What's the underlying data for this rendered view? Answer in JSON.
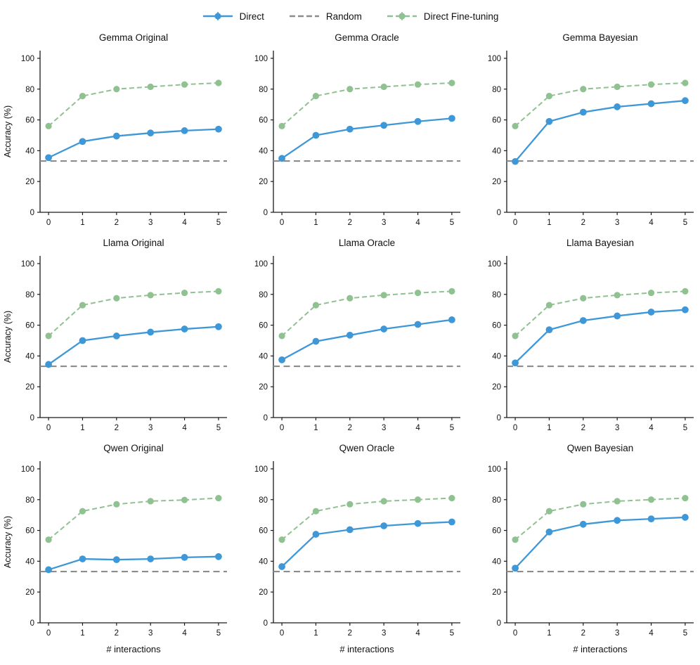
{
  "colors": {
    "direct": "#3e97d7",
    "fine_tuning": "#8fc191",
    "random": "#8c8c8c",
    "spine": "#1a1a1a",
    "text": "#111111"
  },
  "legend": {
    "items": [
      {
        "name": "direct",
        "label": "Direct",
        "style": "solid",
        "marker": true,
        "color_key": "direct"
      },
      {
        "name": "random",
        "label": "Random",
        "style": "dashed",
        "marker": false,
        "color_key": "random"
      },
      {
        "name": "fine-tuning",
        "label": "Direct Fine-tuning",
        "style": "dashed",
        "marker": true,
        "color_key": "fine_tuning"
      }
    ]
  },
  "axes_defaults": {
    "xlim": [
      -0.25,
      5.25
    ],
    "ylim": [
      0,
      105
    ],
    "xticks": [
      0,
      1,
      2,
      3,
      4,
      5
    ],
    "yticks": [
      0,
      20,
      40,
      60,
      80,
      100
    ]
  },
  "chart_data": [
    {
      "type": "line",
      "title": "Gemma Original",
      "ylabel": "Accuracy (%)",
      "xlabel": "",
      "x": [
        0,
        1,
        2,
        3,
        4,
        5
      ],
      "random_baseline": 33.3,
      "series": [
        {
          "name": "Direct Fine-tuning",
          "values": [
            56,
            75.5,
            80,
            81.5,
            83,
            84
          ]
        },
        {
          "name": "Direct",
          "values": [
            35.5,
            46,
            49.5,
            51.5,
            53,
            54
          ]
        }
      ]
    },
    {
      "type": "line",
      "title": "Gemma Oracle",
      "ylabel": "",
      "xlabel": "",
      "x": [
        0,
        1,
        2,
        3,
        4,
        5
      ],
      "random_baseline": 33.3,
      "series": [
        {
          "name": "Direct Fine-tuning",
          "values": [
            56,
            75.5,
            80,
            81.5,
            83,
            84
          ]
        },
        {
          "name": "Direct",
          "values": [
            35,
            50,
            54,
            56.5,
            59,
            61
          ]
        }
      ]
    },
    {
      "type": "line",
      "title": "Gemma Bayesian",
      "ylabel": "",
      "xlabel": "",
      "x": [
        0,
        1,
        2,
        3,
        4,
        5
      ],
      "random_baseline": 33.3,
      "series": [
        {
          "name": "Direct Fine-tuning",
          "values": [
            56,
            75.5,
            80,
            81.5,
            83,
            84
          ]
        },
        {
          "name": "Direct",
          "values": [
            33,
            59,
            65,
            68.5,
            70.5,
            72.5
          ]
        }
      ]
    },
    {
      "type": "line",
      "title": "Llama Original",
      "ylabel": "Accuracy (%)",
      "xlabel": "",
      "x": [
        0,
        1,
        2,
        3,
        4,
        5
      ],
      "random_baseline": 33.3,
      "series": [
        {
          "name": "Direct Fine-tuning",
          "values": [
            53,
            73,
            77.5,
            79.5,
            81,
            82
          ]
        },
        {
          "name": "Direct",
          "values": [
            34.5,
            50,
            53,
            55.5,
            57.5,
            59
          ]
        }
      ]
    },
    {
      "type": "line",
      "title": "Llama Oracle",
      "ylabel": "",
      "xlabel": "",
      "x": [
        0,
        1,
        2,
        3,
        4,
        5
      ],
      "random_baseline": 33.3,
      "series": [
        {
          "name": "Direct Fine-tuning",
          "values": [
            53,
            73,
            77.5,
            79.5,
            81,
            82
          ]
        },
        {
          "name": "Direct",
          "values": [
            37.5,
            49.5,
            53.5,
            57.5,
            60.5,
            63.5
          ]
        }
      ]
    },
    {
      "type": "line",
      "title": "Llama Bayesian",
      "ylabel": "",
      "xlabel": "",
      "x": [
        0,
        1,
        2,
        3,
        4,
        5
      ],
      "random_baseline": 33.3,
      "series": [
        {
          "name": "Direct Fine-tuning",
          "values": [
            53,
            73,
            77.5,
            79.5,
            81,
            82
          ]
        },
        {
          "name": "Direct",
          "values": [
            35.5,
            57,
            63,
            66,
            68.5,
            70
          ]
        }
      ]
    },
    {
      "type": "line",
      "title": "Qwen Original",
      "ylabel": "Accuracy (%)",
      "xlabel": "# interactions",
      "x": [
        0,
        1,
        2,
        3,
        4,
        5
      ],
      "random_baseline": 33.3,
      "series": [
        {
          "name": "Direct Fine-tuning",
          "values": [
            54,
            72.5,
            77,
            79,
            79.8,
            81
          ]
        },
        {
          "name": "Direct",
          "values": [
            34.5,
            41.5,
            41,
            41.5,
            42.5,
            43
          ]
        }
      ]
    },
    {
      "type": "line",
      "title": "Qwen Oracle",
      "ylabel": "",
      "xlabel": "# interactions",
      "x": [
        0,
        1,
        2,
        3,
        4,
        5
      ],
      "random_baseline": 33.3,
      "series": [
        {
          "name": "Direct Fine-tuning",
          "values": [
            54,
            72.5,
            77,
            79,
            80,
            81
          ]
        },
        {
          "name": "Direct",
          "values": [
            36.5,
            57.5,
            60.5,
            63,
            64.5,
            65.5
          ]
        }
      ]
    },
    {
      "type": "line",
      "title": "Qwen Bayesian",
      "ylabel": "",
      "xlabel": "# interactions",
      "x": [
        0,
        1,
        2,
        3,
        4,
        5
      ],
      "random_baseline": 33.3,
      "series": [
        {
          "name": "Direct Fine-tuning",
          "values": [
            54,
            72.5,
            77,
            79,
            80,
            81
          ]
        },
        {
          "name": "Direct",
          "values": [
            35.5,
            59,
            64,
            66.5,
            67.5,
            68.5
          ]
        }
      ]
    }
  ]
}
